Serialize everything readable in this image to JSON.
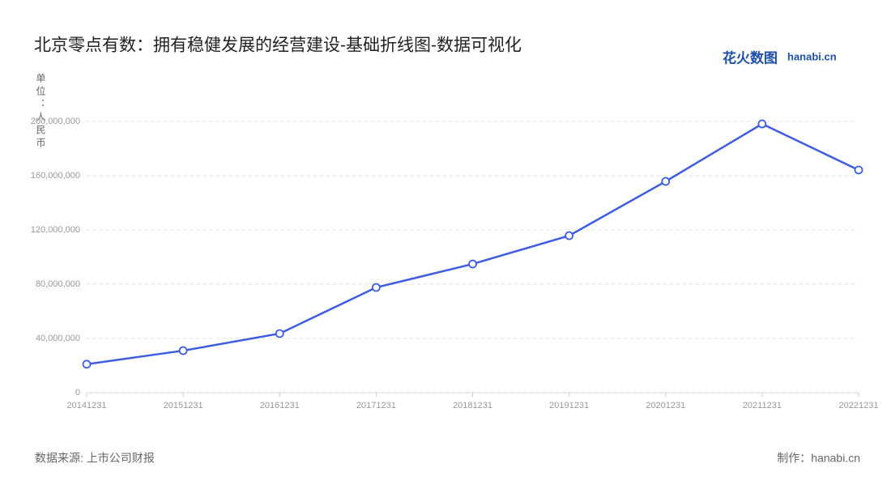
{
  "chart_data": {
    "type": "line",
    "title": "北京零点有数：拥有稳健发展的经营建设-基础折线图-数据可视化",
    "y_label": "单位：人民币",
    "source": "数据来源: 上市公司财报",
    "credit": "制作：hanabi.cn",
    "logo_text": "花火数图",
    "logo_domain": "hanabi.cn",
    "categories": [
      "20141231",
      "20151231",
      "20161231",
      "20171231",
      "20181231",
      "20191231",
      "20201231",
      "20211231",
      "20221231"
    ],
    "values": [
      21000000,
      31000000,
      43600000,
      77600000,
      94900000,
      115800000,
      155800000,
      198200000,
      164200000
    ],
    "color": "#3d5ce0",
    "ylim": [
      0,
      200000000
    ],
    "yticks": [
      0,
      {
        "value": 40000000,
        "label": "40,000,000"
      },
      {
        "value": 80000000,
        "label": "80,000,000"
      },
      {
        "value": 120000000,
        "label": "120,000,000"
      },
      {
        "value": 160000000,
        "label": "160,000,000"
      },
      {
        "value": 200000000,
        "label": "200,000,000"
      }
    ],
    "grid": true
  }
}
